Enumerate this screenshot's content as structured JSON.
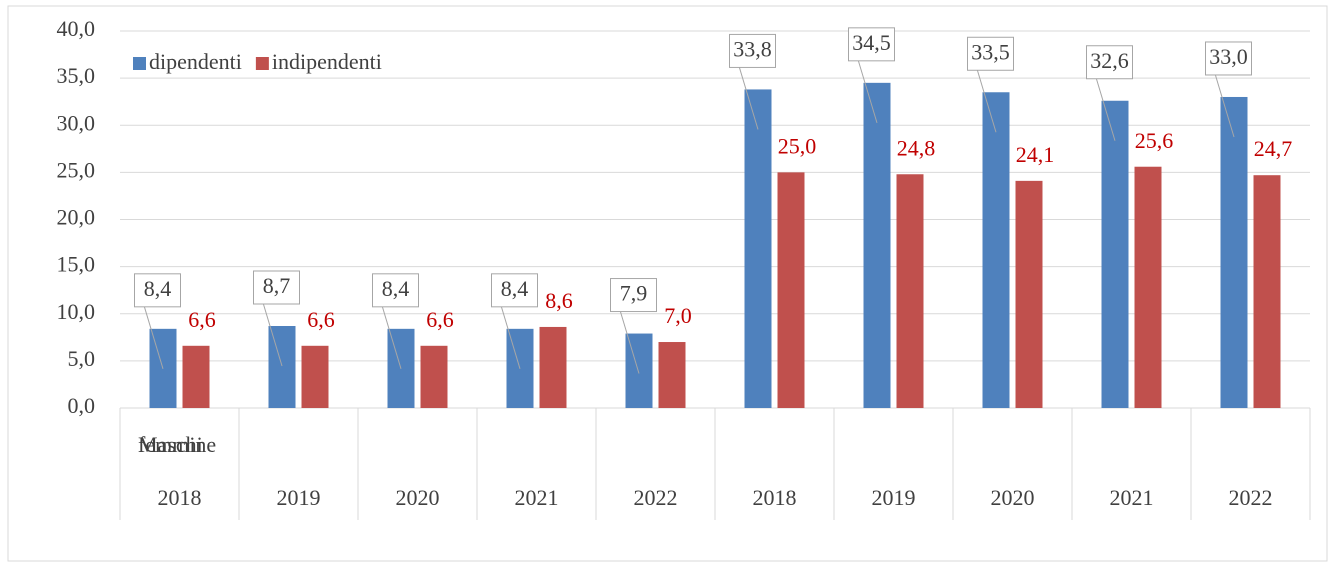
{
  "chart_data": {
    "type": "bar",
    "categories": [
      "2018",
      "2019",
      "2020",
      "2021",
      "2022",
      "2018",
      "2019",
      "2020",
      "2021",
      "2022"
    ],
    "group_labels": [
      "Maschi",
      null,
      null,
      null,
      null,
      "femmine",
      null,
      null,
      null,
      null
    ],
    "series": [
      {
        "name": "dipendenti",
        "color": "#4f81bd",
        "values": [
          8.4,
          8.7,
          8.4,
          8.4,
          7.9,
          33.8,
          34.5,
          33.5,
          32.6,
          33.0
        ],
        "value_labels": [
          "8,4",
          "8,7",
          "8,4",
          "8,4",
          "7,9",
          "33,8",
          "34,5",
          "33,5",
          "32,6",
          "33,0"
        ]
      },
      {
        "name": "indipendenti",
        "color": "#c0504d",
        "values": [
          6.6,
          6.6,
          6.6,
          8.6,
          7.0,
          25.0,
          24.8,
          24.1,
          25.6,
          24.7
        ],
        "value_labels": [
          "6,6",
          "6,6",
          "6,6",
          "8,6",
          "7,0",
          "25,0",
          "24,8",
          "24,1",
          "25,6",
          "24,7"
        ]
      }
    ],
    "ylim": [
      0,
      40
    ],
    "yticks": [
      {
        "value": 0,
        "label": "0,0"
      },
      {
        "value": 5,
        "label": "5,0"
      },
      {
        "value": 10,
        "label": "10,0"
      },
      {
        "value": 15,
        "label": "15,0"
      },
      {
        "value": 20,
        "label": "20,0"
      },
      {
        "value": 25,
        "label": "25,0"
      },
      {
        "value": 30,
        "label": "30,0"
      },
      {
        "value": 35,
        "label": "35,0"
      },
      {
        "value": 40,
        "label": "40,0"
      }
    ],
    "grid": true,
    "legend": "top-left"
  }
}
